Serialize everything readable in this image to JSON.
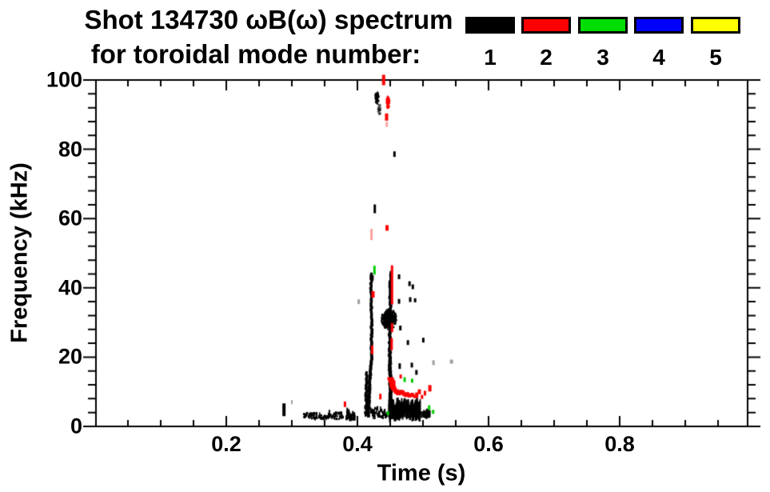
{
  "title": {
    "line1": "Shot 134730 ωB(ω) spectrum",
    "line2": "for toroidal mode number:"
  },
  "legend": {
    "items": [
      {
        "label": "1",
        "color": "#000000"
      },
      {
        "label": "2",
        "color": "#ff0000"
      },
      {
        "label": "3",
        "color": "#00dd00"
      },
      {
        "label": "4",
        "color": "#0000ff"
      },
      {
        "label": "5",
        "color": "#ffff00"
      }
    ]
  },
  "chart_data": {
    "type": "scatter",
    "title": "Shot 134730 ωB(ω) spectrum for toroidal mode number: 1 2 3 4 5",
    "xlabel": "Time (s)",
    "ylabel": "Frequency (kHz)",
    "xlim": [
      0,
      0.995
    ],
    "ylim": [
      0,
      100
    ],
    "grid": false,
    "legend_position": "top-right-outside",
    "axes": {
      "x": {
        "label": "Time (s)",
        "major_ticks": [
          0.2,
          0.4,
          0.6,
          0.8
        ],
        "tick_labels": [
          "0.2",
          "0.4",
          "0.6",
          "0.8"
        ],
        "minor_step": 0.05
      },
      "y": {
        "label": "Frequency (kHz)",
        "major_ticks": [
          0,
          20,
          40,
          60,
          80,
          100
        ],
        "tick_labels": [
          "0",
          "20",
          "40",
          "60",
          "80",
          "100"
        ],
        "minor_step": 4
      }
    },
    "modes": [
      {
        "n": 1,
        "color": "#000000"
      },
      {
        "n": 2,
        "color": "#ff0000"
      },
      {
        "n": 3,
        "color": "#00cc00"
      },
      {
        "n": 4,
        "color": "#0000ff"
      },
      {
        "n": 5,
        "color": "#ffff00"
      }
    ],
    "features": [
      {
        "shape": "dash",
        "mode": 1,
        "t": 0.288,
        "f": 4.8,
        "w": 4,
        "h": 16
      },
      {
        "shape": "dash",
        "mode": 1,
        "faint": true,
        "t": 0.3,
        "f": 7.0,
        "w": 2,
        "h": 5
      },
      {
        "shape": "hband",
        "mode": 1,
        "t0": 0.317,
        "t1": 0.377,
        "f": 3.0,
        "amp": 1.5,
        "thick": 3,
        "density": 0.85,
        "passes": 2,
        "spikes": 0.06
      },
      {
        "shape": "hband",
        "mode": 1,
        "t0": 0.382,
        "t1": 0.395,
        "f": 3.0,
        "amp": 1.6,
        "thick": 5,
        "density": 1,
        "passes": 2,
        "spikes": 0.05
      },
      {
        "shape": "dash",
        "mode": 2,
        "t": 0.381,
        "f": 6.4,
        "w": 3,
        "h": 7
      },
      {
        "shape": "hband",
        "mode": 1,
        "t0": 0.411,
        "t1": 0.444,
        "f": 4.0,
        "amp": 2.2,
        "thick": 5,
        "density": 0.8,
        "passes": 2,
        "spikes": 0.08
      },
      {
        "shape": "path",
        "mode": 1,
        "pts": [
          [
            0.4135,
            3.5
          ],
          [
            0.4145,
            15.5
          ]
        ],
        "w0": 4,
        "w1": 3,
        "jit": 2
      },
      {
        "shape": "path",
        "mode": 1,
        "pts": [
          [
            0.416,
            3
          ],
          [
            0.4185,
            12
          ],
          [
            0.4215,
            20
          ],
          [
            0.4218,
            32
          ],
          [
            0.4205,
            40
          ],
          [
            0.4215,
            44
          ]
        ],
        "w0": 4,
        "w1": 3,
        "jit": 1.5
      },
      {
        "shape": "dash",
        "mode": 3,
        "t": 0.426,
        "f": 45.1,
        "w": 3,
        "h": 11
      },
      {
        "shape": "dash",
        "mode": 2,
        "t": 0.4238,
        "f": 38.1,
        "w": 4,
        "h": 8
      },
      {
        "shape": "dash",
        "mode": 2,
        "t": 0.4225,
        "f": 22.1,
        "w": 3,
        "h": 11
      },
      {
        "shape": "dash",
        "mode": 1,
        "t": 0.4265,
        "f": 62.8,
        "w": 3,
        "h": 11
      },
      {
        "shape": "dash",
        "mode": 2,
        "faint": true,
        "t": 0.4215,
        "f": 55.4,
        "w": 3,
        "h": 14
      },
      {
        "shape": "blob",
        "mode": 1,
        "t": 0.4295,
        "f": 94.8,
        "rt": 0.0028,
        "rf": 1.8,
        "n": 60
      },
      {
        "shape": "blob",
        "mode": 1,
        "faint": true,
        "t": 0.4335,
        "f": 91.5,
        "rt": 0.0026,
        "rf": 1.5,
        "n": 40
      },
      {
        "shape": "dash",
        "mode": 2,
        "t": 0.44,
        "f": 100.0,
        "w": 4,
        "h": 13
      },
      {
        "shape": "blob",
        "mode": 2,
        "t": 0.4465,
        "f": 93.6,
        "rt": 0.0026,
        "rf": 1.7,
        "n": 55
      },
      {
        "shape": "dash",
        "mode": 2,
        "t": 0.4445,
        "f": 89.3,
        "w": 4,
        "h": 9
      },
      {
        "shape": "dash",
        "mode": 2,
        "faint": true,
        "t": 0.4448,
        "f": 87.2,
        "w": 3,
        "h": 6
      },
      {
        "shape": "dash",
        "mode": 2,
        "t": 0.4452,
        "f": 57.3,
        "w": 4,
        "h": 7
      },
      {
        "shape": "path",
        "mode": 1,
        "pts": [
          [
            0.4525,
            2.5
          ],
          [
            0.4508,
            9
          ],
          [
            0.4495,
            17
          ],
          [
            0.4495,
            27
          ],
          [
            0.4505,
            34
          ],
          [
            0.4495,
            40
          ],
          [
            0.4508,
            44.5
          ]
        ],
        "w0": 5,
        "w1": 3,
        "jit": 1.5
      },
      {
        "shape": "blob",
        "mode": 1,
        "t": 0.448,
        "f": 31.0,
        "rt": 0.0115,
        "rf": 3.0,
        "n": 260
      },
      {
        "shape": "vline",
        "mode": 2,
        "t": 0.4528,
        "f0": 35.2,
        "f1": 46.5,
        "w": 3
      },
      {
        "shape": "vline",
        "mode": 2,
        "t": 0.4528,
        "f0": 27.2,
        "f1": 29.8,
        "w": 3
      },
      {
        "shape": "vline",
        "mode": 2,
        "t": 0.4522,
        "f0": 22.0,
        "f1": 25.5,
        "w": 3
      },
      {
        "shape": "dash",
        "mode": 1,
        "t": 0.4565,
        "f": 78.6,
        "w": 3,
        "h": 7
      },
      {
        "shape": "hband",
        "mode": 1,
        "t0": 0.447,
        "t1": 0.4955,
        "f": 4.6,
        "amp": 2.6,
        "thick": 13,
        "density": 1,
        "passes": 3,
        "spikes": 0.1
      },
      {
        "shape": "hband",
        "mode": 1,
        "t0": 0.4955,
        "t1": 0.5095,
        "f": 3.6,
        "amp": 1.3,
        "thick": 6,
        "density": 0.85,
        "passes": 2,
        "spikes": 0.05
      },
      {
        "shape": "path",
        "mode": 2,
        "pts": [
          [
            0.4515,
            13.8
          ],
          [
            0.4535,
            12.1
          ],
          [
            0.4565,
            10.7
          ],
          [
            0.46,
            9.8
          ],
          [
            0.4635,
            9.4
          ],
          [
            0.4665,
            10.2
          ],
          [
            0.47,
            9.6
          ],
          [
            0.473,
            8.9
          ],
          [
            0.4765,
            9.5
          ],
          [
            0.48,
            8.7
          ],
          [
            0.4835,
            9.3
          ],
          [
            0.4865,
            8.6
          ]
        ],
        "w0": 8,
        "w1": 4,
        "jit": 1.5
      },
      {
        "shape": "dash",
        "mode": 2,
        "t": 0.4905,
        "f": 9.0,
        "w": 4,
        "h": 7
      },
      {
        "shape": "dash",
        "mode": 2,
        "t": 0.4945,
        "f": 10.0,
        "w": 4,
        "h": 6
      },
      {
        "shape": "dash",
        "mode": 2,
        "t": 0.4985,
        "f": 8.5,
        "w": 3,
        "h": 5
      },
      {
        "shape": "dash",
        "mode": 2,
        "t": 0.503,
        "f": 9.6,
        "w": 3,
        "h": 6
      },
      {
        "shape": "dash",
        "mode": 2,
        "t": 0.5105,
        "f": 11.0,
        "w": 4,
        "h": 8
      },
      {
        "shape": "dash",
        "mode": 2,
        "t": 0.435,
        "f": 8.6,
        "w": 3,
        "h": 7
      },
      {
        "shape": "dash",
        "mode": 2,
        "t": 0.466,
        "f": 14.4,
        "w": 3,
        "h": 5
      },
      {
        "shape": "dash",
        "mode": 1,
        "t": 0.4635,
        "f": 43.2,
        "w": 3,
        "h": 6
      },
      {
        "shape": "dash",
        "mode": 1,
        "t": 0.423,
        "f": 42.9,
        "w": 3,
        "h": 7
      },
      {
        "shape": "dash",
        "mode": 1,
        "t": 0.4795,
        "f": 41.2,
        "w": 3,
        "h": 6
      },
      {
        "shape": "dash",
        "mode": 1,
        "t": 0.4845,
        "f": 40.3,
        "w": 3,
        "h": 6
      },
      {
        "shape": "dash",
        "mode": 1,
        "t": 0.4635,
        "f": 36.1,
        "w": 3,
        "h": 6
      },
      {
        "shape": "dash",
        "mode": 1,
        "t": 0.4805,
        "f": 36.6,
        "w": 3,
        "h": 6
      },
      {
        "shape": "dash",
        "mode": 1,
        "t": 0.488,
        "f": 36.4,
        "w": 3,
        "h": 5
      },
      {
        "shape": "dash",
        "mode": 1,
        "t": 0.4655,
        "f": 28.4,
        "w": 3,
        "h": 6
      },
      {
        "shape": "dash",
        "mode": 1,
        "t": 0.477,
        "f": 24.2,
        "w": 3,
        "h": 6
      },
      {
        "shape": "dash",
        "mode": 1,
        "t": 0.5005,
        "f": 24.9,
        "w": 3,
        "h": 6
      },
      {
        "shape": "dash",
        "mode": 1,
        "t": 0.4645,
        "f": 17.4,
        "w": 3,
        "h": 7
      },
      {
        "shape": "dash",
        "mode": 1,
        "t": 0.483,
        "f": 17.7,
        "w": 3,
        "h": 6
      },
      {
        "shape": "dash",
        "mode": 1,
        "t": 0.49,
        "f": 15.6,
        "w": 3,
        "h": 6
      },
      {
        "shape": "dash",
        "mode": 1,
        "faint": true,
        "t": 0.402,
        "f": 36.0,
        "w": 3,
        "h": 6
      },
      {
        "shape": "dash",
        "mode": 1,
        "faint": true,
        "t": 0.516,
        "f": 18.4,
        "w": 3,
        "h": 6
      },
      {
        "shape": "dash",
        "mode": 1,
        "faint": true,
        "t": 0.5435,
        "f": 18.7,
        "w": 4,
        "h": 5
      },
      {
        "shape": "dash",
        "mode": 3,
        "t": 0.472,
        "f": 13.5,
        "w": 3,
        "h": 6
      },
      {
        "shape": "dash",
        "mode": 3,
        "t": 0.4835,
        "f": 13.2,
        "w": 3,
        "h": 5
      },
      {
        "shape": "dash",
        "mode": 3,
        "t": 0.4465,
        "f": 3.8,
        "w": 3,
        "h": 5
      },
      {
        "shape": "dash",
        "mode": 3,
        "t": 0.5095,
        "f": 5.4,
        "w": 3,
        "h": 6
      },
      {
        "shape": "dash",
        "mode": 3,
        "t": 0.5155,
        "f": 4.2,
        "w": 3,
        "h": 5
      }
    ]
  }
}
